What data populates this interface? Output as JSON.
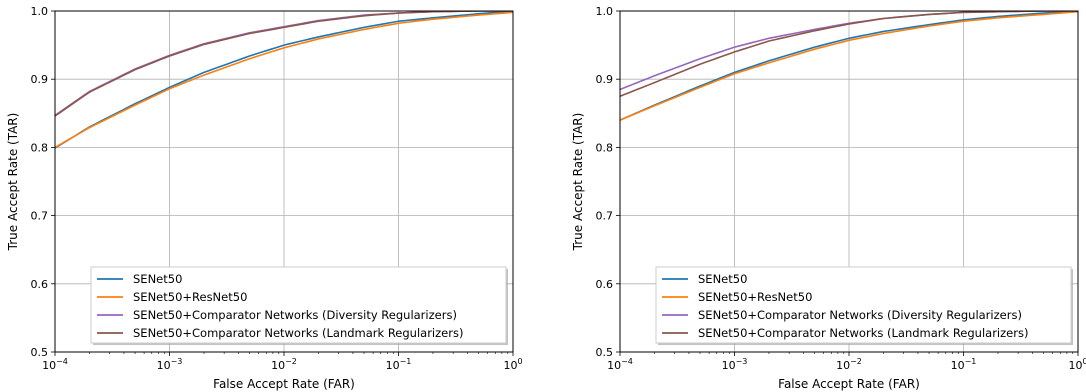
{
  "chart_data": [
    {
      "type": "line",
      "xscale": "log",
      "xlim": [
        0.0001,
        1
      ],
      "ylim": [
        0.5,
        1.0
      ],
      "xlabel": "False Accept Rate (FAR)",
      "ylabel": "True Accept Rate (TAR)",
      "xticks": [
        {
          "value": 0.0001,
          "base": "10",
          "exp": "−4"
        },
        {
          "value": 0.001,
          "base": "10",
          "exp": "−3"
        },
        {
          "value": 0.01,
          "base": "10",
          "exp": "−2"
        },
        {
          "value": 0.1,
          "base": "10",
          "exp": "−1"
        },
        {
          "value": 1,
          "base": "10",
          "exp": "0"
        }
      ],
      "yticks": [
        {
          "value": 0.5,
          "label": "0.5"
        },
        {
          "value": 0.6,
          "label": "0.6"
        },
        {
          "value": 0.7,
          "label": "0.7"
        },
        {
          "value": 0.8,
          "label": "0.8"
        },
        {
          "value": 0.9,
          "label": "0.9"
        },
        {
          "value": 1.0,
          "label": "1.0"
        }
      ],
      "grid": true,
      "legend_position": "lower-right",
      "series": [
        {
          "name": "SENet50",
          "color": "#1f77b4",
          "x": [
            0.0001,
            0.0002,
            0.0005,
            0.001,
            0.002,
            0.005,
            0.01,
            0.02,
            0.05,
            0.1,
            0.2,
            0.5,
            1
          ],
          "y": [
            0.799,
            0.83,
            0.864,
            0.888,
            0.91,
            0.934,
            0.95,
            0.962,
            0.976,
            0.985,
            0.99,
            0.996,
            1.0
          ]
        },
        {
          "name": "SENet50+ResNet50",
          "color": "#ff7f0e",
          "x": [
            0.0001,
            0.0002,
            0.0005,
            0.001,
            0.002,
            0.005,
            0.01,
            0.02,
            0.05,
            0.1,
            0.2,
            0.5,
            1
          ],
          "y": [
            0.8,
            0.829,
            0.862,
            0.886,
            0.906,
            0.93,
            0.946,
            0.959,
            0.973,
            0.982,
            0.988,
            0.994,
            0.998
          ]
        },
        {
          "name": "SENet50+Comparator Networks (Diversity Regularizers)",
          "color": "#9467bd",
          "x": [
            0.0001,
            0.0002,
            0.0005,
            0.001,
            0.002,
            0.005,
            0.01,
            0.02,
            0.05,
            0.1,
            0.2,
            0.5,
            1
          ],
          "y": [
            0.847,
            0.882,
            0.915,
            0.935,
            0.952,
            0.968,
            0.977,
            0.986,
            0.994,
            0.997,
            0.999,
            1.0,
            1.0
          ]
        },
        {
          "name": "SENet50+Comparator Networks (Landmark Regularizers)",
          "color": "#8c564b",
          "x": [
            0.0001,
            0.0002,
            0.0005,
            0.001,
            0.002,
            0.005,
            0.01,
            0.02,
            0.05,
            0.1,
            0.2,
            0.5,
            1
          ],
          "y": [
            0.846,
            0.881,
            0.914,
            0.934,
            0.951,
            0.967,
            0.976,
            0.985,
            0.993,
            0.997,
            0.999,
            1.0,
            1.0
          ]
        }
      ]
    },
    {
      "type": "line",
      "xscale": "log",
      "xlim": [
        0.0001,
        1
      ],
      "ylim": [
        0.5,
        1.0
      ],
      "xlabel": "False Accept Rate (FAR)",
      "ylabel": "True Accept Rate (TAR)",
      "xticks": [
        {
          "value": 0.0001,
          "base": "10",
          "exp": "−4"
        },
        {
          "value": 0.001,
          "base": "10",
          "exp": "−3"
        },
        {
          "value": 0.01,
          "base": "10",
          "exp": "−2"
        },
        {
          "value": 0.1,
          "base": "10",
          "exp": "−1"
        },
        {
          "value": 1,
          "base": "10",
          "exp": "0"
        }
      ],
      "yticks": [
        {
          "value": 0.5,
          "label": "0.5"
        },
        {
          "value": 0.6,
          "label": "0.6"
        },
        {
          "value": 0.7,
          "label": "0.7"
        },
        {
          "value": 0.8,
          "label": "0.8"
        },
        {
          "value": 0.9,
          "label": "0.9"
        },
        {
          "value": 1.0,
          "label": "1.0"
        }
      ],
      "grid": true,
      "legend_position": "lower-right",
      "series": [
        {
          "name": "SENet50",
          "color": "#1f77b4",
          "x": [
            0.0001,
            0.0002,
            0.0005,
            0.001,
            0.002,
            0.005,
            0.01,
            0.02,
            0.05,
            0.1,
            0.2,
            0.5,
            1
          ],
          "y": [
            0.84,
            0.862,
            0.89,
            0.91,
            0.927,
            0.947,
            0.96,
            0.97,
            0.98,
            0.987,
            0.992,
            0.997,
            1.0
          ]
        },
        {
          "name": "SENet50+ResNet50",
          "color": "#ff7f0e",
          "x": [
            0.0001,
            0.0002,
            0.0005,
            0.001,
            0.002,
            0.005,
            0.01,
            0.02,
            0.05,
            0.1,
            0.2,
            0.5,
            1
          ],
          "y": [
            0.84,
            0.861,
            0.888,
            0.908,
            0.924,
            0.944,
            0.957,
            0.967,
            0.978,
            0.985,
            0.99,
            0.995,
            0.999
          ]
        },
        {
          "name": "SENet50+Comparator Networks (Diversity Regularizers)",
          "color": "#9467bd",
          "x": [
            0.0001,
            0.0002,
            0.0005,
            0.001,
            0.002,
            0.005,
            0.01,
            0.02,
            0.05,
            0.1,
            0.2,
            0.5,
            1
          ],
          "y": [
            0.885,
            0.905,
            0.93,
            0.947,
            0.96,
            0.973,
            0.982,
            0.989,
            0.995,
            0.998,
            0.999,
            1.0,
            1.0
          ]
        },
        {
          "name": "SENet50+Comparator Networks (Landmark Regularizers)",
          "color": "#8c564b",
          "x": [
            0.0001,
            0.0002,
            0.0005,
            0.001,
            0.002,
            0.005,
            0.01,
            0.02,
            0.05,
            0.1,
            0.2,
            0.5,
            1
          ],
          "y": [
            0.875,
            0.895,
            0.922,
            0.94,
            0.956,
            0.971,
            0.981,
            0.989,
            0.995,
            0.998,
            0.999,
            1.0,
            1.0
          ]
        }
      ]
    }
  ]
}
